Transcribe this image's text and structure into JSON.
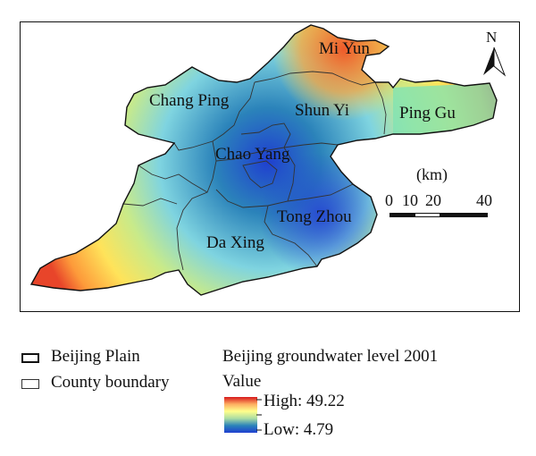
{
  "map": {
    "labels": {
      "mi_yun": "Mi Yun",
      "chang_ping": "Chang Ping",
      "shun_yi": "Shun Yi",
      "ping_gu": "Ping Gu",
      "chao_yang": "Chao Yang",
      "tong_zhou": "Tong Zhou",
      "da_xing": "Da Xing"
    },
    "north": "N",
    "scale_bar": {
      "unit": "(km)",
      "ticks": [
        "0",
        "10",
        "20",
        "40"
      ]
    }
  },
  "legend": {
    "beijing_plain": "Beijing Plain",
    "county_boundary": "County boundary",
    "title": "Beijing groundwater level 2001",
    "value_label": "Value",
    "high": "High: 49.22",
    "low": "Low: 4.79",
    "colors": [
      "#d7191c",
      "#fdae61",
      "#ffff8c",
      "#abdda4",
      "#2b83ba",
      "#1f3fd0"
    ]
  }
}
